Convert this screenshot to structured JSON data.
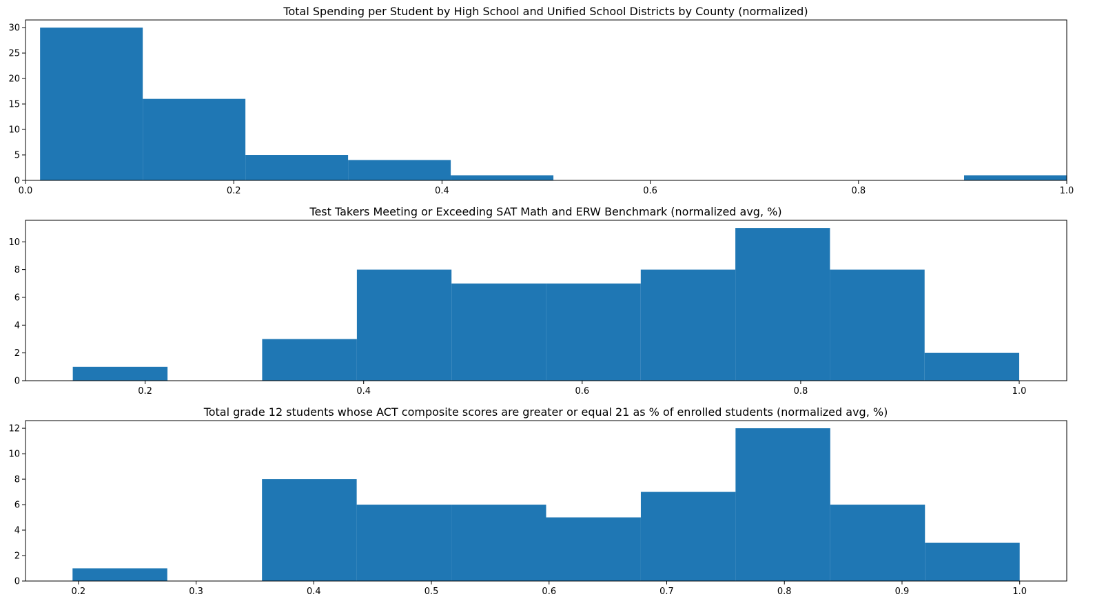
{
  "chart_data": [
    {
      "type": "histogram",
      "title": "Total Spending per Student by High School and Unified School Districts by County (normalized)",
      "xlabel": "",
      "ylabel": "",
      "xlim": [
        0.0,
        1.0
      ],
      "ylim": [
        0,
        31.5
      ],
      "bin_edges": [
        0.014,
        0.1126,
        0.2112,
        0.3098,
        0.4084,
        0.507,
        0.6056,
        0.7042,
        0.8028,
        0.9014,
        1.0
      ],
      "counts": [
        30,
        16,
        5,
        4,
        1,
        0,
        0,
        0,
        0,
        1
      ],
      "xticks": [
        0.0,
        0.2,
        0.4,
        0.6,
        0.8,
        1.0
      ],
      "xtick_labels": [
        "0.0",
        "0.2",
        "0.4",
        "0.6",
        "0.8",
        "1.0"
      ],
      "yticks": [
        0,
        5,
        10,
        15,
        20,
        25,
        30
      ],
      "ytick_labels": [
        "0",
        "5",
        "10",
        "15",
        "20",
        "25",
        "30"
      ],
      "color": "#1f77b4",
      "grid": false
    },
    {
      "type": "histogram",
      "title": "Test Takers Meeting or Exceeding SAT Math and ERW Benchmark (normalized avg, %)",
      "xlabel": "",
      "ylabel": "",
      "xlim": [
        0.0905,
        1.0435
      ],
      "ylim": [
        0,
        11.55
      ],
      "bin_edges": [
        0.1338,
        0.2205,
        0.3071,
        0.3938,
        0.4804,
        0.5671,
        0.6536,
        0.7402,
        0.8268,
        0.9134,
        1.0
      ],
      "counts": [
        1,
        0,
        3,
        8,
        7,
        7,
        8,
        11,
        8,
        2
      ],
      "xticks": [
        0.2,
        0.4,
        0.6,
        0.8,
        1.0
      ],
      "xtick_labels": [
        "0.2",
        "0.4",
        "0.6",
        "0.8",
        "1.0"
      ],
      "yticks": [
        0,
        2,
        4,
        6,
        8,
        10
      ],
      "ytick_labels": [
        "0",
        "2",
        "4",
        "6",
        "8",
        "10"
      ],
      "color": "#1f77b4",
      "grid": false
    },
    {
      "type": "histogram",
      "title": "Total grade 12 students whose ACT composite scores are greater or equal 21 as % of enrolled students (normalized avg, %)",
      "xlabel": "",
      "ylabel": "",
      "xlim": [
        0.155,
        1.04
      ],
      "ylim": [
        0,
        12.6
      ],
      "bin_edges": [
        0.195,
        0.2755,
        0.356,
        0.4365,
        0.517,
        0.5975,
        0.678,
        0.7585,
        0.839,
        0.9195,
        1.0
      ],
      "counts": [
        1,
        0,
        8,
        6,
        6,
        5,
        7,
        12,
        6,
        3
      ],
      "xticks": [
        0.2,
        0.3,
        0.4,
        0.5,
        0.6,
        0.7,
        0.8,
        0.9,
        1.0
      ],
      "xtick_labels": [
        "0.2",
        "0.3",
        "0.4",
        "0.5",
        "0.6",
        "0.7",
        "0.8",
        "0.9",
        "1.0"
      ],
      "yticks": [
        0,
        2,
        4,
        6,
        8,
        10,
        12
      ],
      "ytick_labels": [
        "0",
        "2",
        "4",
        "6",
        "8",
        "10",
        "12"
      ],
      "color": "#1f77b4",
      "grid": false
    }
  ]
}
